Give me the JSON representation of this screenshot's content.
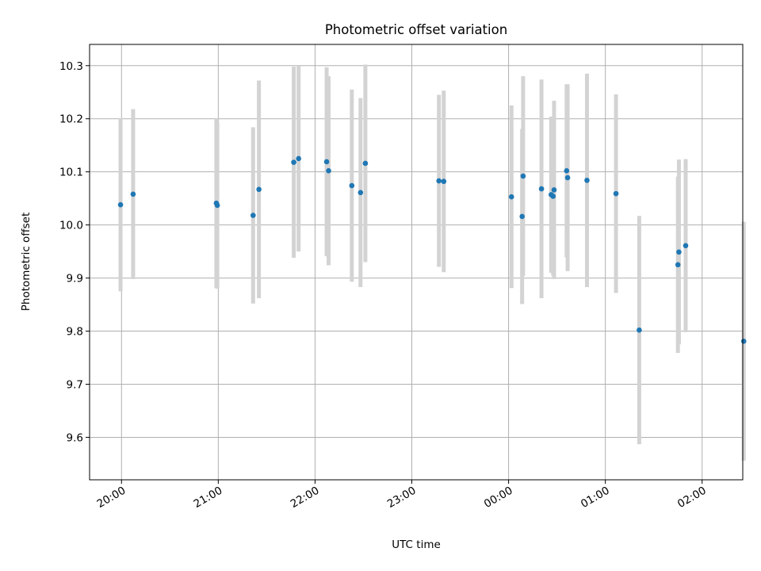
{
  "chart_data": {
    "type": "scatter",
    "title": "Photometric offset variation",
    "xlabel": "UTC time",
    "ylabel": "Photometric offset",
    "x_unit": "hours (20:00 = 20; after midnight continues as 24+)",
    "xlim": [
      19.67,
      26.42
    ],
    "ylim": [
      9.52,
      10.34
    ],
    "grid": true,
    "x_ticks": [
      {
        "value": 20,
        "label": "20:00"
      },
      {
        "value": 21,
        "label": "21:00"
      },
      {
        "value": 22,
        "label": "22:00"
      },
      {
        "value": 23,
        "label": "23:00"
      },
      {
        "value": 24,
        "label": "00:00"
      },
      {
        "value": 25,
        "label": "01:00"
      },
      {
        "value": 26,
        "label": "02:00"
      }
    ],
    "y_ticks": [
      {
        "value": 9.6,
        "label": "9.6"
      },
      {
        "value": 9.7,
        "label": "9.7"
      },
      {
        "value": 9.8,
        "label": "9.8"
      },
      {
        "value": 9.9,
        "label": "9.9"
      },
      {
        "value": 10.0,
        "label": "10.0"
      },
      {
        "value": 10.1,
        "label": "10.1"
      },
      {
        "value": 10.2,
        "label": "10.2"
      },
      {
        "value": 10.3,
        "label": "10.3"
      }
    ],
    "colors": {
      "points": "#1f77b4",
      "errorbars": "#d3d3d3"
    },
    "points": [
      {
        "x": 19.99,
        "y": 10.038,
        "err": 0.163
      },
      {
        "x": 20.12,
        "y": 10.058,
        "err": 0.16
      },
      {
        "x": 20.98,
        "y": 10.041,
        "err": 0.16
      },
      {
        "x": 20.99,
        "y": 10.037,
        "err": 0.157
      },
      {
        "x": 21.36,
        "y": 10.018,
        "err": 0.166
      },
      {
        "x": 21.42,
        "y": 10.067,
        "err": 0.205
      },
      {
        "x": 21.78,
        "y": 10.118,
        "err": 0.18
      },
      {
        "x": 21.83,
        "y": 10.125,
        "err": 0.175
      },
      {
        "x": 22.12,
        "y": 10.119,
        "err": 0.178
      },
      {
        "x": 22.14,
        "y": 10.102,
        "err": 0.178
      },
      {
        "x": 22.38,
        "y": 10.074,
        "err": 0.181
      },
      {
        "x": 22.47,
        "y": 10.061,
        "err": 0.178
      },
      {
        "x": 22.52,
        "y": 10.116,
        "err": 0.186
      },
      {
        "x": 23.28,
        "y": 10.083,
        "err": 0.162
      },
      {
        "x": 23.33,
        "y": 10.082,
        "err": 0.171
      },
      {
        "x": 24.03,
        "y": 10.053,
        "err": 0.172
      },
      {
        "x": 24.14,
        "y": 10.016,
        "err": 0.165
      },
      {
        "x": 24.15,
        "y": 10.092,
        "err": 0.188
      },
      {
        "x": 24.34,
        "y": 10.068,
        "err": 0.206
      },
      {
        "x": 24.44,
        "y": 10.057,
        "err": 0.147
      },
      {
        "x": 24.46,
        "y": 10.054,
        "err": 0.149
      },
      {
        "x": 24.47,
        "y": 10.066,
        "err": 0.168
      },
      {
        "x": 24.6,
        "y": 10.102,
        "err": 0.163
      },
      {
        "x": 24.61,
        "y": 10.089,
        "err": 0.176
      },
      {
        "x": 24.81,
        "y": 10.084,
        "err": 0.201
      },
      {
        "x": 25.11,
        "y": 10.059,
        "err": 0.187
      },
      {
        "x": 25.35,
        "y": 9.802,
        "err": 0.215
      },
      {
        "x": 25.75,
        "y": 9.925,
        "err": 0.166
      },
      {
        "x": 25.76,
        "y": 9.949,
        "err": 0.174
      },
      {
        "x": 25.83,
        "y": 9.961,
        "err": 0.163
      },
      {
        "x": 26.43,
        "y": 9.781,
        "err": 0.225
      }
    ]
  }
}
